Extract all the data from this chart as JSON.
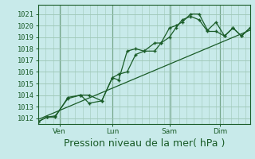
{
  "background_color": "#c8eaea",
  "grid_color": "#a0c8b8",
  "line_color": "#1a5c28",
  "xlabel": "Pression niveau de la mer( hPa )",
  "xlabel_fontsize": 9,
  "yticks": [
    1012,
    1013,
    1014,
    1015,
    1016,
    1017,
    1018,
    1019,
    1020,
    1021
  ],
  "ylim": [
    1011.5,
    1021.8
  ],
  "xlim": [
    0,
    100
  ],
  "xtick_positions": [
    10,
    35,
    62,
    86
  ],
  "xtick_labels": [
    "Ven",
    "Lun",
    "Sam",
    "Dim"
  ],
  "vline_positions": [
    10,
    35,
    62,
    86
  ],
  "series1_x": [
    0,
    4,
    8,
    14,
    20,
    24,
    30,
    35,
    38,
    42,
    46,
    50,
    55,
    58,
    62,
    65,
    68,
    72,
    76,
    80,
    84,
    88,
    92,
    96,
    100
  ],
  "series1_y": [
    1011.7,
    1012.1,
    1012.1,
    1013.8,
    1014.0,
    1013.3,
    1013.5,
    1015.5,
    1015.3,
    1017.8,
    1018.0,
    1017.8,
    1017.8,
    1018.5,
    1019.8,
    1020.0,
    1020.3,
    1021.0,
    1021.0,
    1019.6,
    1020.3,
    1019.1,
    1019.8,
    1019.1,
    1019.8
  ],
  "series2_x": [
    0,
    4,
    8,
    14,
    20,
    24,
    30,
    35,
    38,
    42,
    46,
    50,
    55,
    58,
    62,
    65,
    68,
    72,
    76,
    80,
    84,
    88,
    92,
    96,
    100
  ],
  "series2_y": [
    1011.7,
    1012.1,
    1012.2,
    1013.7,
    1014.0,
    1014.0,
    1013.5,
    1015.5,
    1015.8,
    1016.0,
    1017.5,
    1017.8,
    1018.5,
    1018.5,
    1019.0,
    1019.8,
    1020.5,
    1020.8,
    1020.5,
    1019.5,
    1019.5,
    1019.1,
    1019.8,
    1019.1,
    1019.8
  ],
  "trend_x": [
    0,
    100
  ],
  "trend_y": [
    1011.9,
    1019.6
  ],
  "marker": "+"
}
